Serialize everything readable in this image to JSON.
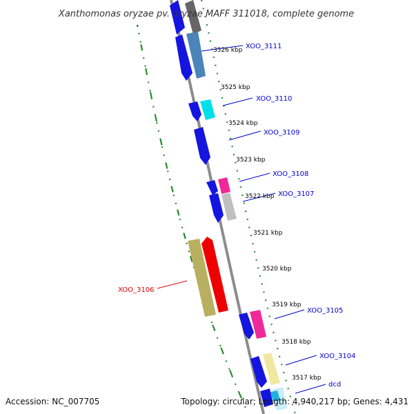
{
  "title": "Xanthomonas oryzae pv. oryzae MAFF 311018, complete genome",
  "footer": {
    "accession": "Accession: NC_007705",
    "summary": "Topology: circular; Length: 4,940,217 bp; Genes: 4,431"
  },
  "ticks": [
    {
      "label": "3526 kbp",
      "kbp": 3526
    },
    {
      "label": "3525 kbp",
      "kbp": 3525
    },
    {
      "label": "3524 kbp",
      "kbp": 3524
    },
    {
      "label": "3523 kbp",
      "kbp": 3523
    },
    {
      "label": "3522 kbp",
      "kbp": 3522
    },
    {
      "label": "3521 kbp",
      "kbp": 3521
    },
    {
      "label": "3520 kbp",
      "kbp": 3520
    },
    {
      "label": "3519 kbp",
      "kbp": 3519
    },
    {
      "label": "3518 kbp",
      "kbp": 3518
    },
    {
      "label": "3517 kbp",
      "kbp": 3517
    }
  ],
  "colors": {
    "backbone": "#888888",
    "orf": "#1010e8",
    "skew": "#2a8a2a",
    "link": "#0000cc",
    "highlight": "#dd0000"
  },
  "genes": [
    {
      "label": "XOO_3111",
      "color": "#0000cc"
    },
    {
      "label": "XOO_3110",
      "color": "#0000cc"
    },
    {
      "label": "XOO_3109",
      "color": "#0000cc"
    },
    {
      "label": "XOO_3108",
      "color": "#0000cc"
    },
    {
      "label": "XOO_3107",
      "color": "#0000cc"
    },
    {
      "label": "XOO_3106",
      "color": "#dd0000"
    },
    {
      "label": "XOO_3105",
      "color": "#0000cc"
    },
    {
      "label": "XOO_3104",
      "color": "#0000cc"
    },
    {
      "label": "dcd",
      "color": "#0000cc"
    }
  ]
}
